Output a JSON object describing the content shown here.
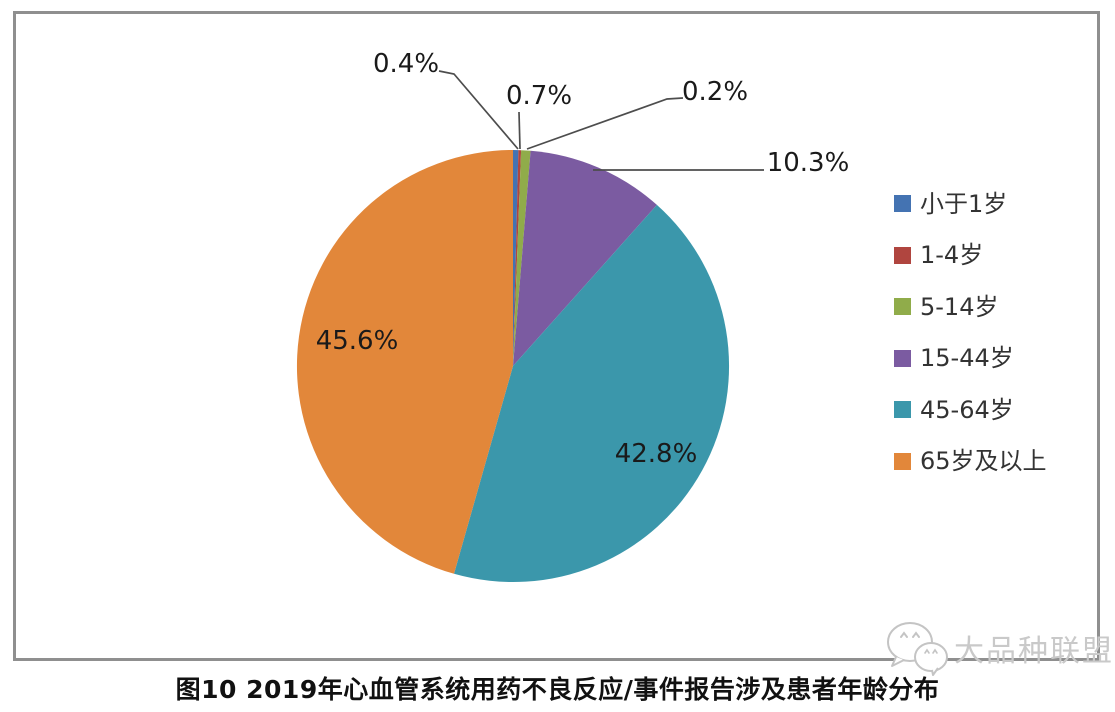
{
  "page": {
    "caption": "图10 2019年心血管系统用药不良反应/事件报告涉及患者年龄分布",
    "watermark": "大品种联盟"
  },
  "chart_data": {
    "type": "pie",
    "title": "图10 2019年心血管系统用药不良反应/事件报告涉及患者年龄分布",
    "categories": [
      "小于1岁",
      "1-4岁",
      "5-14岁",
      "15-44岁",
      "45-64岁",
      "65岁及以上"
    ],
    "values": [
      0.4,
      0.2,
      0.7,
      10.3,
      42.8,
      45.6
    ],
    "data_labels": [
      "0.4%",
      "0.2%",
      "0.7%",
      "10.3%",
      "42.8%",
      "45.6%"
    ],
    "colors": [
      "#4473b2",
      "#b0453f",
      "#90ac4a",
      "#7b5ba1",
      "#3b97ab",
      "#e2873a"
    ],
    "legend_position": "right",
    "start_angle_deg": 0,
    "direction": "clockwise",
    "legend_text_color": "#333333",
    "label_text_color": "#1a1a1a",
    "leader_line_color": "#4d4d4d",
    "frame_border_color": "#8f8f8f",
    "watermark_color": "#c9c9c9"
  }
}
